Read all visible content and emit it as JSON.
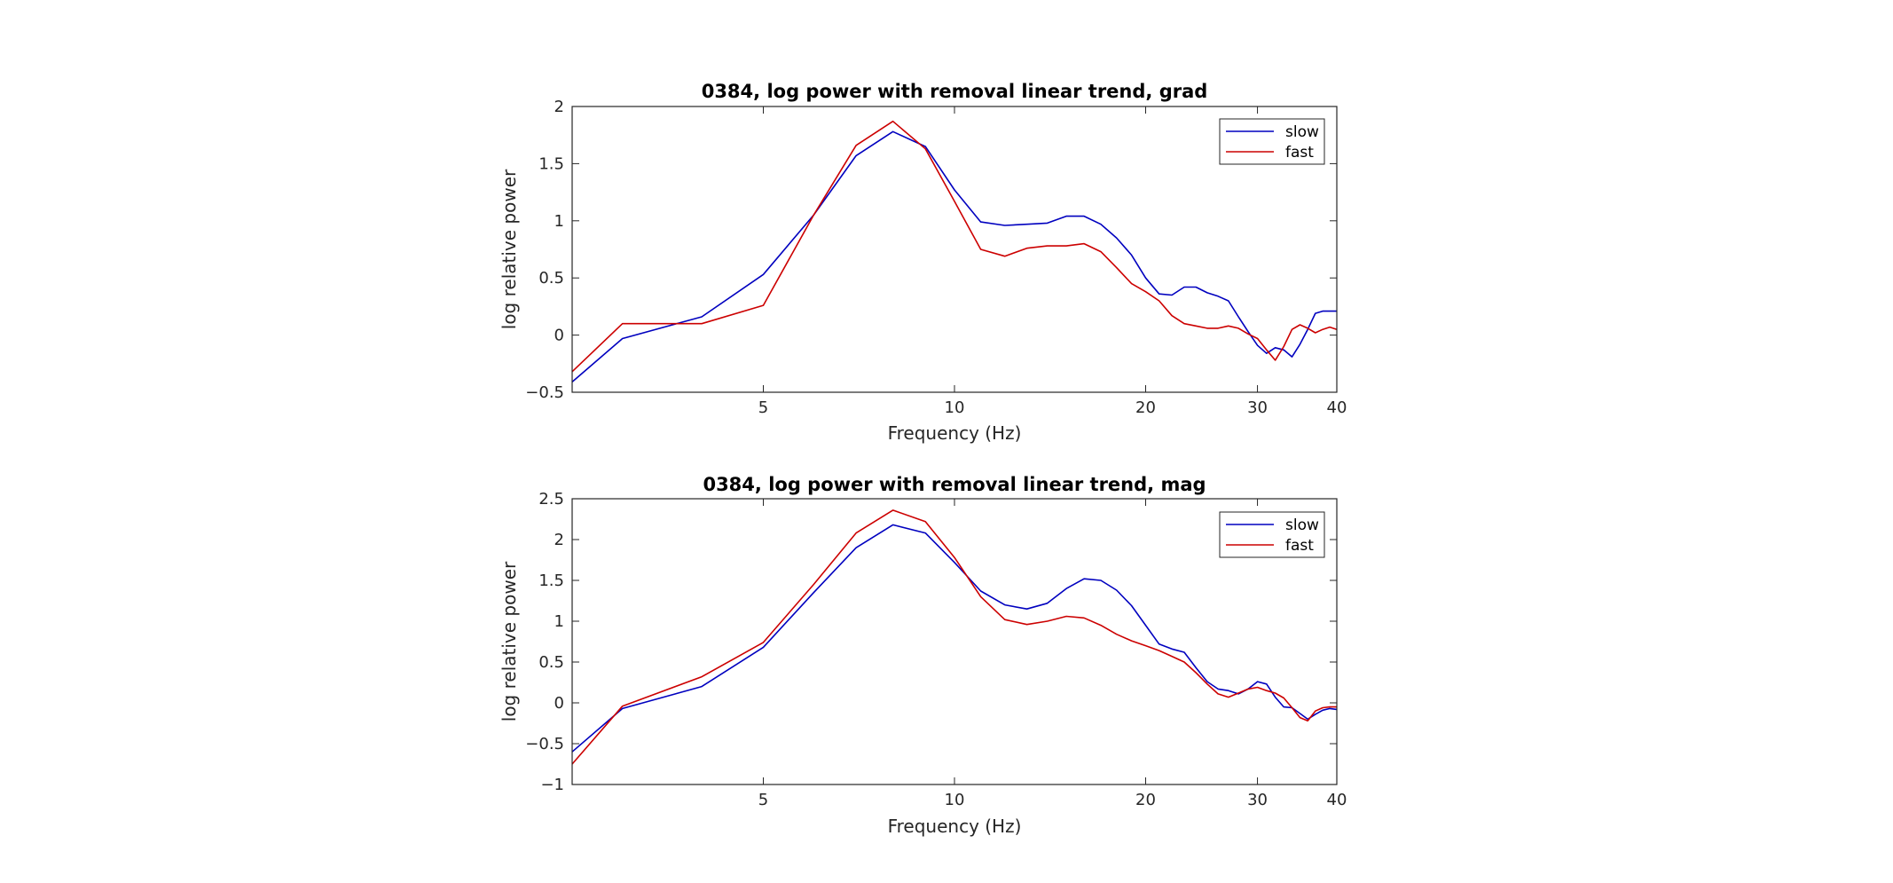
{
  "chart_data": [
    {
      "type": "line",
      "title": "0384, log power with removal linear trend, grad",
      "xlabel": "Frequency (Hz)",
      "ylabel": "log relative power",
      "xscale": "log",
      "xlim": [
        2.5,
        40
      ],
      "ylim": [
        -0.5,
        2
      ],
      "xticks": [
        5,
        10,
        20,
        30,
        40
      ],
      "xtick_labels": [
        "5",
        "10",
        "20",
        "30",
        "40"
      ],
      "yticks": [
        -0.5,
        0,
        0.5,
        1,
        1.5,
        2
      ],
      "ytick_labels": [
        "−0.5",
        "0",
        "0.5",
        "1",
        "1.5",
        "2"
      ],
      "legend_position": "top-right",
      "grid": false,
      "series": [
        {
          "name": "slow",
          "color": "#0000bf",
          "x": [
            2.5,
            3.0,
            4.0,
            5.0,
            6.0,
            7.0,
            8.0,
            9.0,
            10.0,
            11.0,
            12.0,
            13.0,
            14.0,
            15.0,
            16.0,
            17.0,
            18.0,
            19.0,
            20.0,
            21.0,
            22.0,
            23.0,
            24.0,
            25.0,
            26.0,
            27.0,
            28.0,
            29.0,
            30.0,
            31.0,
            32.0,
            33.0,
            34.0,
            35.0,
            36.0,
            37.0,
            38.0,
            39.0,
            40.0
          ],
          "y": [
            -0.41,
            -0.03,
            0.16,
            0.53,
            1.05,
            1.57,
            1.78,
            1.65,
            1.27,
            0.99,
            0.96,
            0.97,
            0.98,
            1.04,
            1.04,
            0.97,
            0.85,
            0.7,
            0.5,
            0.36,
            0.35,
            0.42,
            0.42,
            0.37,
            0.34,
            0.3,
            0.16,
            0.03,
            -0.09,
            -0.16,
            -0.11,
            -0.13,
            -0.19,
            -0.08,
            0.05,
            0.19,
            0.21,
            0.21,
            0.21
          ]
        },
        {
          "name": "fast",
          "color": "#cc0000",
          "x": [
            2.5,
            3.0,
            4.0,
            5.0,
            6.0,
            7.0,
            8.0,
            9.0,
            10.0,
            11.0,
            12.0,
            13.0,
            14.0,
            15.0,
            16.0,
            17.0,
            18.0,
            19.0,
            20.0,
            21.0,
            22.0,
            23.0,
            24.0,
            25.0,
            26.0,
            27.0,
            28.0,
            29.0,
            30.0,
            31.0,
            32.0,
            33.0,
            34.0,
            35.0,
            36.0,
            37.0,
            38.0,
            39.0,
            40.0
          ],
          "y": [
            -0.32,
            0.1,
            0.1,
            0.26,
            1.05,
            1.66,
            1.87,
            1.63,
            1.17,
            0.75,
            0.69,
            0.76,
            0.78,
            0.78,
            0.8,
            0.73,
            0.59,
            0.45,
            0.38,
            0.3,
            0.17,
            0.1,
            0.08,
            0.06,
            0.06,
            0.08,
            0.06,
            0.01,
            -0.03,
            -0.13,
            -0.22,
            -0.1,
            0.05,
            0.09,
            0.06,
            0.02,
            0.05,
            0.07,
            0.05
          ]
        }
      ]
    },
    {
      "type": "line",
      "title": "0384, log power with removal linear trend, mag",
      "xlabel": "Frequency (Hz)",
      "ylabel": "log relative power",
      "xscale": "log",
      "xlim": [
        2.5,
        40
      ],
      "ylim": [
        -1,
        2.5
      ],
      "xticks": [
        5,
        10,
        20,
        30,
        40
      ],
      "xtick_labels": [
        "5",
        "10",
        "20",
        "30",
        "40"
      ],
      "yticks": [
        -1,
        -0.5,
        0,
        0.5,
        1,
        1.5,
        2,
        2.5
      ],
      "ytick_labels": [
        "−1",
        "−0.5",
        "0",
        "0.5",
        "1",
        "1.5",
        "2",
        "2.5"
      ],
      "legend_position": "top-right",
      "grid": false,
      "series": [
        {
          "name": "slow",
          "color": "#0000bf",
          "x": [
            2.5,
            3.0,
            4.0,
            5.0,
            6.0,
            7.0,
            8.0,
            9.0,
            10.0,
            11.0,
            12.0,
            13.0,
            14.0,
            15.0,
            16.0,
            17.0,
            18.0,
            19.0,
            20.0,
            21.0,
            22.0,
            23.0,
            24.0,
            25.0,
            26.0,
            27.0,
            28.0,
            29.0,
            30.0,
            31.0,
            32.0,
            33.0,
            34.0,
            35.0,
            36.0,
            37.0,
            38.0,
            39.0,
            40.0
          ],
          "y": [
            -0.6,
            -0.07,
            0.2,
            0.68,
            1.35,
            1.9,
            2.18,
            2.08,
            1.72,
            1.37,
            1.2,
            1.15,
            1.22,
            1.4,
            1.52,
            1.5,
            1.38,
            1.19,
            0.95,
            0.72,
            0.66,
            0.62,
            0.43,
            0.26,
            0.17,
            0.15,
            0.11,
            0.17,
            0.26,
            0.23,
            0.07,
            -0.05,
            -0.06,
            -0.13,
            -0.2,
            -0.14,
            -0.09,
            -0.07,
            -0.08
          ]
        },
        {
          "name": "fast",
          "color": "#cc0000",
          "x": [
            2.5,
            3.0,
            4.0,
            5.0,
            6.0,
            7.0,
            8.0,
            9.0,
            10.0,
            11.0,
            12.0,
            13.0,
            14.0,
            15.0,
            16.0,
            17.0,
            18.0,
            19.0,
            20.0,
            21.0,
            22.0,
            23.0,
            24.0,
            25.0,
            26.0,
            27.0,
            28.0,
            29.0,
            30.0,
            31.0,
            32.0,
            33.0,
            34.0,
            35.0,
            36.0,
            37.0,
            38.0,
            39.0,
            40.0
          ],
          "y": [
            -0.75,
            -0.04,
            0.32,
            0.74,
            1.45,
            2.08,
            2.36,
            2.22,
            1.78,
            1.3,
            1.02,
            0.96,
            1.0,
            1.06,
            1.04,
            0.95,
            0.84,
            0.76,
            0.7,
            0.64,
            0.57,
            0.5,
            0.37,
            0.23,
            0.11,
            0.07,
            0.12,
            0.17,
            0.19,
            0.15,
            0.12,
            0.06,
            -0.06,
            -0.18,
            -0.22,
            -0.1,
            -0.06,
            -0.05,
            -0.05
          ]
        }
      ]
    }
  ]
}
